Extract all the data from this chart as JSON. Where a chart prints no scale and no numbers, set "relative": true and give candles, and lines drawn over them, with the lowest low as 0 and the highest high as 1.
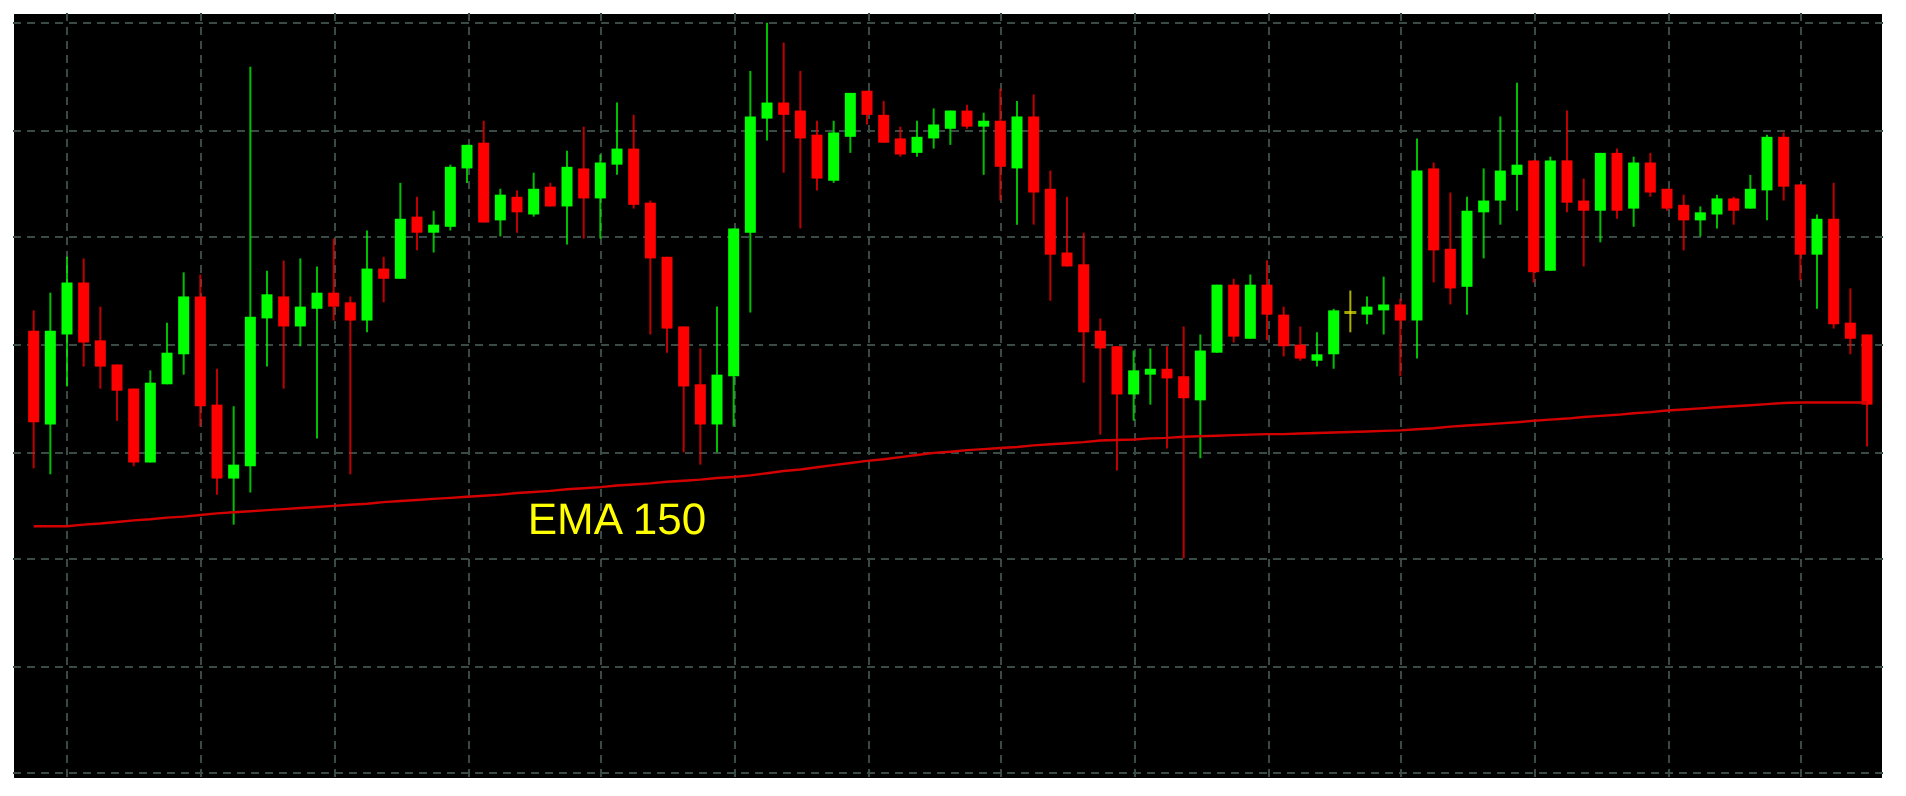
{
  "chart_data": {
    "type": "candlestick",
    "relative": true,
    "grid": true,
    "tick_labels": false,
    "categories": [
      null,
      null,
      null,
      null,
      null,
      null,
      null,
      null,
      null,
      null,
      null,
      null,
      null,
      null,
      null,
      null,
      null,
      null,
      null,
      null,
      null,
      null,
      null,
      null,
      null,
      null,
      null,
      null,
      null,
      null,
      null,
      null,
      null,
      null,
      null,
      null,
      null,
      null,
      null,
      null,
      null,
      null,
      null,
      null,
      null,
      null,
      null,
      null,
      null,
      null,
      null,
      null,
      null,
      null,
      null,
      null,
      null,
      null,
      null,
      null,
      null,
      null,
      null,
      null,
      null,
      null,
      null,
      null,
      null,
      null,
      null,
      null,
      null,
      null,
      null,
      null,
      null,
      null,
      null,
      null,
      null,
      null,
      null,
      null,
      null,
      null,
      null,
      null,
      null,
      null,
      null,
      null,
      null,
      null,
      null,
      null,
      null,
      null,
      null,
      null,
      null,
      null,
      null,
      null,
      null,
      null,
      null,
      null,
      null,
      null,
      null
    ],
    "ohlc": [
      [
        0.425,
        0.463,
        0.168,
        0.254
      ],
      [
        0.25,
        0.496,
        0.157,
        0.425
      ],
      [
        0.418,
        0.563,
        0.321,
        0.515
      ],
      [
        0.515,
        0.56,
        0.358,
        0.403
      ],
      [
        0.407,
        0.47,
        0.317,
        0.358
      ],
      [
        0.362,
        0.362,
        0.257,
        0.313
      ],
      [
        0.317,
        0.317,
        0.172,
        0.179
      ],
      [
        0.179,
        0.351,
        0.179,
        0.328
      ],
      [
        0.325,
        0.44,
        0.325,
        0.384
      ],
      [
        0.381,
        0.534,
        0.343,
        0.489
      ],
      [
        0.489,
        0.53,
        0.246,
        0.284
      ],
      [
        0.287,
        0.354,
        0.119,
        0.149
      ],
      [
        0.149,
        0.284,
        0.063,
        0.175
      ],
      [
        0.172,
        0.918,
        0.123,
        0.451
      ],
      [
        0.448,
        0.537,
        0.358,
        0.493
      ],
      [
        0.489,
        0.556,
        0.317,
        0.433
      ],
      [
        0.433,
        0.56,
        0.396,
        0.47
      ],
      [
        0.466,
        0.545,
        0.224,
        0.496
      ],
      [
        0.496,
        0.597,
        0.444,
        0.47
      ],
      [
        0.478,
        0.489,
        0.157,
        0.444
      ],
      [
        0.444,
        0.612,
        0.422,
        0.541
      ],
      [
        0.541,
        0.563,
        0.478,
        0.522
      ],
      [
        0.522,
        0.701,
        0.522,
        0.634
      ],
      [
        0.638,
        0.675,
        0.575,
        0.608
      ],
      [
        0.608,
        0.649,
        0.571,
        0.623
      ],
      [
        0.619,
        0.735,
        0.612,
        0.731
      ],
      [
        0.728,
        0.772,
        0.701,
        0.772
      ],
      [
        0.776,
        0.817,
        0.627,
        0.627
      ],
      [
        0.631,
        0.69,
        0.601,
        0.679
      ],
      [
        0.675,
        0.687,
        0.608,
        0.646
      ],
      [
        0.642,
        0.72,
        0.638,
        0.69
      ],
      [
        0.694,
        0.701,
        0.657,
        0.657
      ],
      [
        0.657,
        0.761,
        0.586,
        0.731
      ],
      [
        0.728,
        0.806,
        0.597,
        0.672
      ],
      [
        0.672,
        0.754,
        0.597,
        0.739
      ],
      [
        0.735,
        0.851,
        0.716,
        0.765
      ],
      [
        0.765,
        0.828,
        0.653,
        0.66
      ],
      [
        0.664,
        0.668,
        0.418,
        0.56
      ],
      [
        0.563,
        0.563,
        0.384,
        0.429
      ],
      [
        0.433,
        0.433,
        0.198,
        0.321
      ],
      [
        0.325,
        0.392,
        0.175,
        0.25
      ],
      [
        0.25,
        0.47,
        0.198,
        0.343
      ],
      [
        0.34,
        0.616,
        0.246,
        0.616
      ],
      [
        0.608,
        0.91,
        0.459,
        0.825
      ],
      [
        0.821,
        1.0,
        0.78,
        0.851
      ],
      [
        0.851,
        0.963,
        0.72,
        0.828
      ],
      [
        0.836,
        0.91,
        0.616,
        0.784
      ],
      [
        0.791,
        0.817,
        0.687,
        0.709
      ],
      [
        0.705,
        0.817,
        0.701,
        0.795
      ],
      [
        0.787,
        0.869,
        0.757,
        0.869
      ],
      [
        0.873,
        0.873,
        0.81,
        0.828
      ],
      [
        0.828,
        0.854,
        0.776,
        0.776
      ],
      [
        0.784,
        0.806,
        0.75,
        0.754
      ],
      [
        0.757,
        0.817,
        0.75,
        0.787
      ],
      [
        0.784,
        0.84,
        0.765,
        0.81
      ],
      [
        0.802,
        0.836,
        0.772,
        0.836
      ],
      [
        0.836,
        0.847,
        0.802,
        0.806
      ],
      [
        0.806,
        0.832,
        0.716,
        0.817
      ],
      [
        0.817,
        0.877,
        0.668,
        0.731
      ],
      [
        0.728,
        0.854,
        0.623,
        0.825
      ],
      [
        0.825,
        0.866,
        0.623,
        0.683
      ],
      [
        0.69,
        0.724,
        0.481,
        0.567
      ],
      [
        0.571,
        0.675,
        0.545,
        0.545
      ],
      [
        0.549,
        0.608,
        0.328,
        0.422
      ],
      [
        0.425,
        0.448,
        0.231,
        0.392
      ],
      [
        0.396,
        0.396,
        0.164,
        0.306
      ],
      [
        0.306,
        0.388,
        0.257,
        0.351
      ],
      [
        0.343,
        0.392,
        0.287,
        0.354
      ],
      [
        0.354,
        0.396,
        0.205,
        0.336
      ],
      [
        0.34,
        0.433,
        0.0,
        0.299
      ],
      [
        0.295,
        0.418,
        0.187,
        0.388
      ],
      [
        0.384,
        0.511,
        0.384,
        0.511
      ],
      [
        0.511,
        0.522,
        0.403,
        0.414
      ],
      [
        0.41,
        0.53,
        0.41,
        0.511
      ],
      [
        0.511,
        0.556,
        0.407,
        0.455
      ],
      [
        0.455,
        0.47,
        0.377,
        0.396
      ],
      [
        0.399,
        0.433,
        0.369,
        0.373
      ],
      [
        0.369,
        0.422,
        0.358,
        0.381
      ],
      [
        0.381,
        0.466,
        0.354,
        0.463
      ],
      [
        0.459,
        0.5,
        0.422,
        0.459
      ],
      [
        0.455,
        0.489,
        0.437,
        0.47
      ],
      [
        0.463,
        0.526,
        0.418,
        0.474
      ],
      [
        0.474,
        0.485,
        0.34,
        0.444
      ],
      [
        0.444,
        0.784,
        0.373,
        0.724
      ],
      [
        0.728,
        0.739,
        0.515,
        0.575
      ],
      [
        0.578,
        0.683,
        0.474,
        0.504
      ],
      [
        0.507,
        0.675,
        0.455,
        0.649
      ],
      [
        0.646,
        0.728,
        0.56,
        0.668
      ],
      [
        0.668,
        0.825,
        0.623,
        0.724
      ],
      [
        0.716,
        0.888,
        0.649,
        0.735
      ],
      [
        0.743,
        0.743,
        0.515,
        0.534
      ],
      [
        0.537,
        0.75,
        0.537,
        0.743
      ],
      [
        0.743,
        0.836,
        0.646,
        0.664
      ],
      [
        0.668,
        0.709,
        0.545,
        0.649
      ],
      [
        0.649,
        0.757,
        0.59,
        0.757
      ],
      [
        0.757,
        0.765,
        0.634,
        0.649
      ],
      [
        0.653,
        0.75,
        0.619,
        0.739
      ],
      [
        0.739,
        0.757,
        0.675,
        0.683
      ],
      [
        0.69,
        0.69,
        0.649,
        0.653
      ],
      [
        0.66,
        0.679,
        0.575,
        0.631
      ],
      [
        0.631,
        0.657,
        0.601,
        0.646
      ],
      [
        0.642,
        0.679,
        0.616,
        0.672
      ],
      [
        0.672,
        0.675,
        0.623,
        0.649
      ],
      [
        0.653,
        0.716,
        0.653,
        0.69
      ],
      [
        0.687,
        0.791,
        0.631,
        0.787
      ],
      [
        0.787,
        0.795,
        0.668,
        0.694
      ],
      [
        0.698,
        0.698,
        0.519,
        0.567
      ],
      [
        0.567,
        0.642,
        0.466,
        0.634
      ],
      [
        0.634,
        0.701,
        0.429,
        0.437
      ],
      [
        0.44,
        0.504,
        0.381,
        0.41
      ],
      [
        0.418,
        0.418,
        0.209,
        0.287
      ]
    ],
    "colors": [
      "#ff0000",
      "#00ff00",
      "#00ff00",
      "#ff0000",
      "#ff0000",
      "#ff0000",
      "#ff0000",
      "#00ff00",
      "#00ff00",
      "#00ff00",
      "#ff0000",
      "#ff0000",
      "#00ff00",
      "#00ff00",
      "#00ff00",
      "#ff0000",
      "#00ff00",
      "#00ff00",
      "#ff0000",
      "#ff0000",
      "#00ff00",
      "#ff0000",
      "#00ff00",
      "#ff0000",
      "#00ff00",
      "#00ff00",
      "#00ff00",
      "#ff0000",
      "#00ff00",
      "#ff0000",
      "#00ff00",
      "#ff0000",
      "#00ff00",
      "#ff0000",
      "#00ff00",
      "#00ff00",
      "#ff0000",
      "#ff0000",
      "#ff0000",
      "#ff0000",
      "#ff0000",
      "#00ff00",
      "#00ff00",
      "#00ff00",
      "#00ff00",
      "#ff0000",
      "#ff0000",
      "#ff0000",
      "#00ff00",
      "#00ff00",
      "#ff0000",
      "#ff0000",
      "#ff0000",
      "#00ff00",
      "#00ff00",
      "#00ff00",
      "#ff0000",
      "#00ff00",
      "#ff0000",
      "#00ff00",
      "#ff0000",
      "#ff0000",
      "#ff0000",
      "#ff0000",
      "#ff0000",
      "#ff0000",
      "#00ff00",
      "#00ff00",
      "#ff0000",
      "#ff0000",
      "#00ff00",
      "#00ff00",
      "#ff0000",
      "#00ff00",
      "#ff0000",
      "#ff0000",
      "#ff0000",
      "#00ff00",
      "#00ff00",
      "#e6e600",
      "#00ff00",
      "#00ff00",
      "#ff0000",
      "#00ff00",
      "#ff0000",
      "#ff0000",
      "#00ff00",
      "#00ff00",
      "#00ff00",
      "#00ff00",
      "#ff0000",
      "#00ff00",
      "#ff0000",
      "#ff0000",
      "#00ff00",
      "#ff0000",
      "#00ff00",
      "#ff0000",
      "#ff0000",
      "#ff0000",
      "#00ff00",
      "#00ff00",
      "#ff0000",
      "#00ff00",
      "#00ff00",
      "#ff0000",
      "#ff0000",
      "#00ff00",
      "#ff0000",
      "#ff0000",
      "#ff0000"
    ],
    "series": [
      {
        "name": "EMA 150",
        "type": "line",
        "color": "#d40000",
        "values": [
          0.06,
          0.06,
          0.06,
          0.063,
          0.065,
          0.068,
          0.071,
          0.073,
          0.076,
          0.078,
          0.081,
          0.084,
          0.086,
          0.088,
          0.09,
          0.092,
          0.094,
          0.096,
          0.098,
          0.1,
          0.102,
          0.105,
          0.107,
          0.109,
          0.111,
          0.113,
          0.115,
          0.117,
          0.119,
          0.122,
          0.124,
          0.126,
          0.129,
          0.131,
          0.133,
          0.136,
          0.138,
          0.14,
          0.143,
          0.145,
          0.147,
          0.15,
          0.152,
          0.155,
          0.159,
          0.163,
          0.166,
          0.17,
          0.174,
          0.178,
          0.182,
          0.185,
          0.189,
          0.193,
          0.197,
          0.199,
          0.202,
          0.204,
          0.206,
          0.208,
          0.211,
          0.213,
          0.215,
          0.217,
          0.22,
          0.221,
          0.222,
          0.224,
          0.225,
          0.227,
          0.228,
          0.229,
          0.23,
          0.231,
          0.232,
          0.232,
          0.233,
          0.234,
          0.235,
          0.236,
          0.237,
          0.238,
          0.239,
          0.241,
          0.243,
          0.246,
          0.248,
          0.25,
          0.252,
          0.254,
          0.257,
          0.259,
          0.261,
          0.264,
          0.266,
          0.268,
          0.271,
          0.273,
          0.276,
          0.278,
          0.28,
          0.282,
          0.284,
          0.286,
          0.288,
          0.29,
          0.291,
          0.291,
          0.291,
          0.291,
          0.291
        ]
      }
    ]
  }
}
